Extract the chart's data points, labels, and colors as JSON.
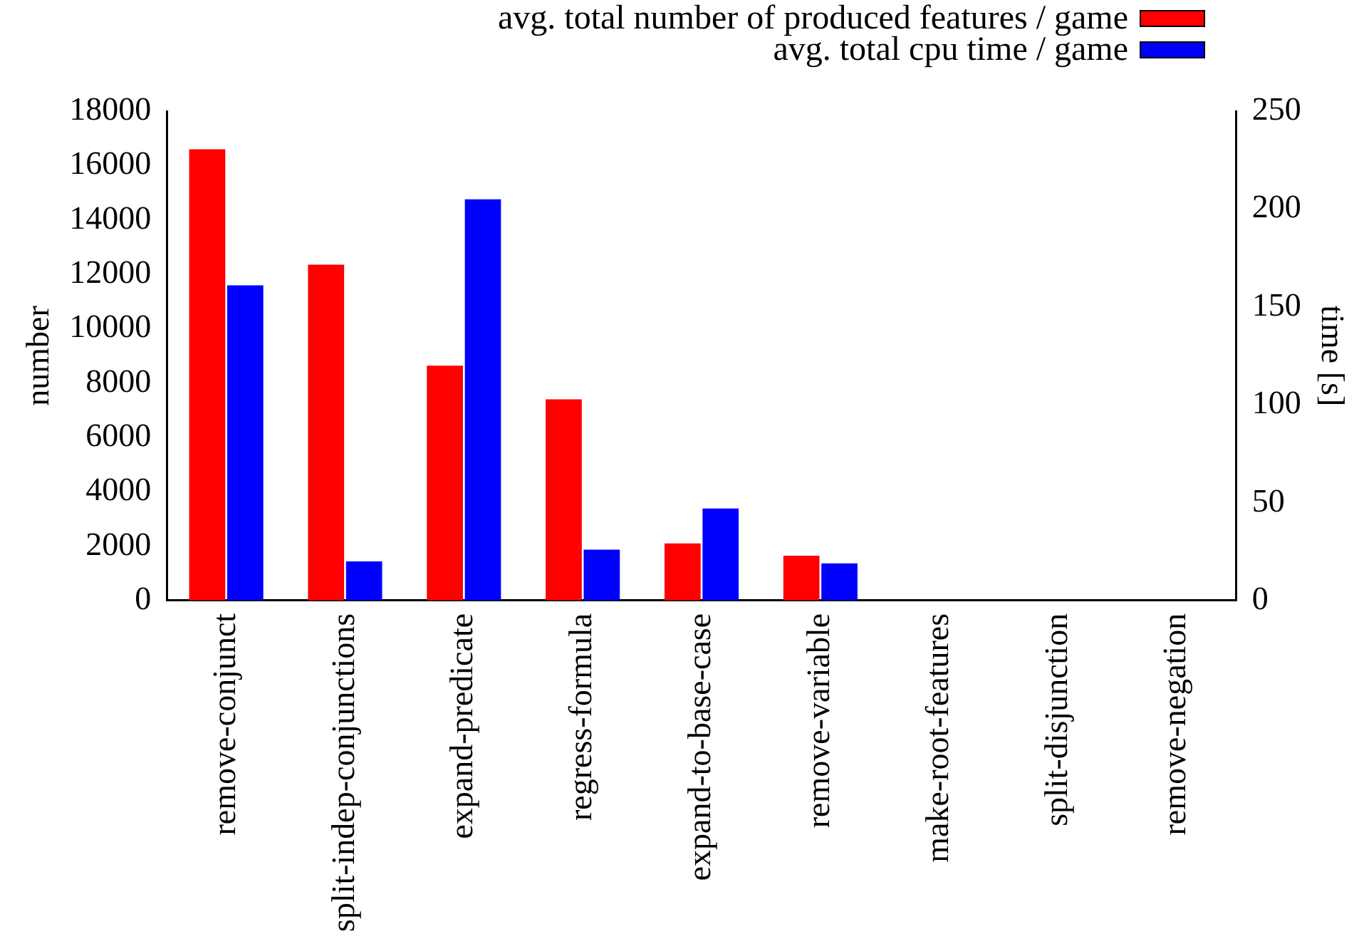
{
  "chart_data": {
    "type": "bar",
    "categories": [
      "remove-conjunct",
      "split-indep-conjunctions",
      "expand-predicate",
      "regress-formula",
      "expand-to-base-case",
      "remove-variable",
      "make-root-features",
      "split-disjunction",
      "remove-negation"
    ],
    "series": [
      {
        "name": "avg. total number of produced features / game",
        "color": "#ff0000",
        "values": [
          16600,
          12350,
          8640,
          7400,
          2100,
          1650,
          0,
          0,
          0
        ]
      },
      {
        "name": "avg. total cpu time / game",
        "color": "#0000ff",
        "axis": "y2",
        "values": [
          161,
          20,
          205,
          26,
          47,
          19,
          0,
          0,
          0
        ]
      }
    ],
    "ylabel": "number",
    "y2label": "time [s]",
    "ylim": [
      0,
      18000
    ],
    "yticks": [
      0,
      2000,
      4000,
      6000,
      8000,
      10000,
      12000,
      14000,
      16000,
      18000
    ],
    "y2lim": [
      0,
      250
    ],
    "y2ticks": [
      0,
      50,
      100,
      150,
      200,
      250
    ],
    "grid": false,
    "legend": "top right"
  }
}
